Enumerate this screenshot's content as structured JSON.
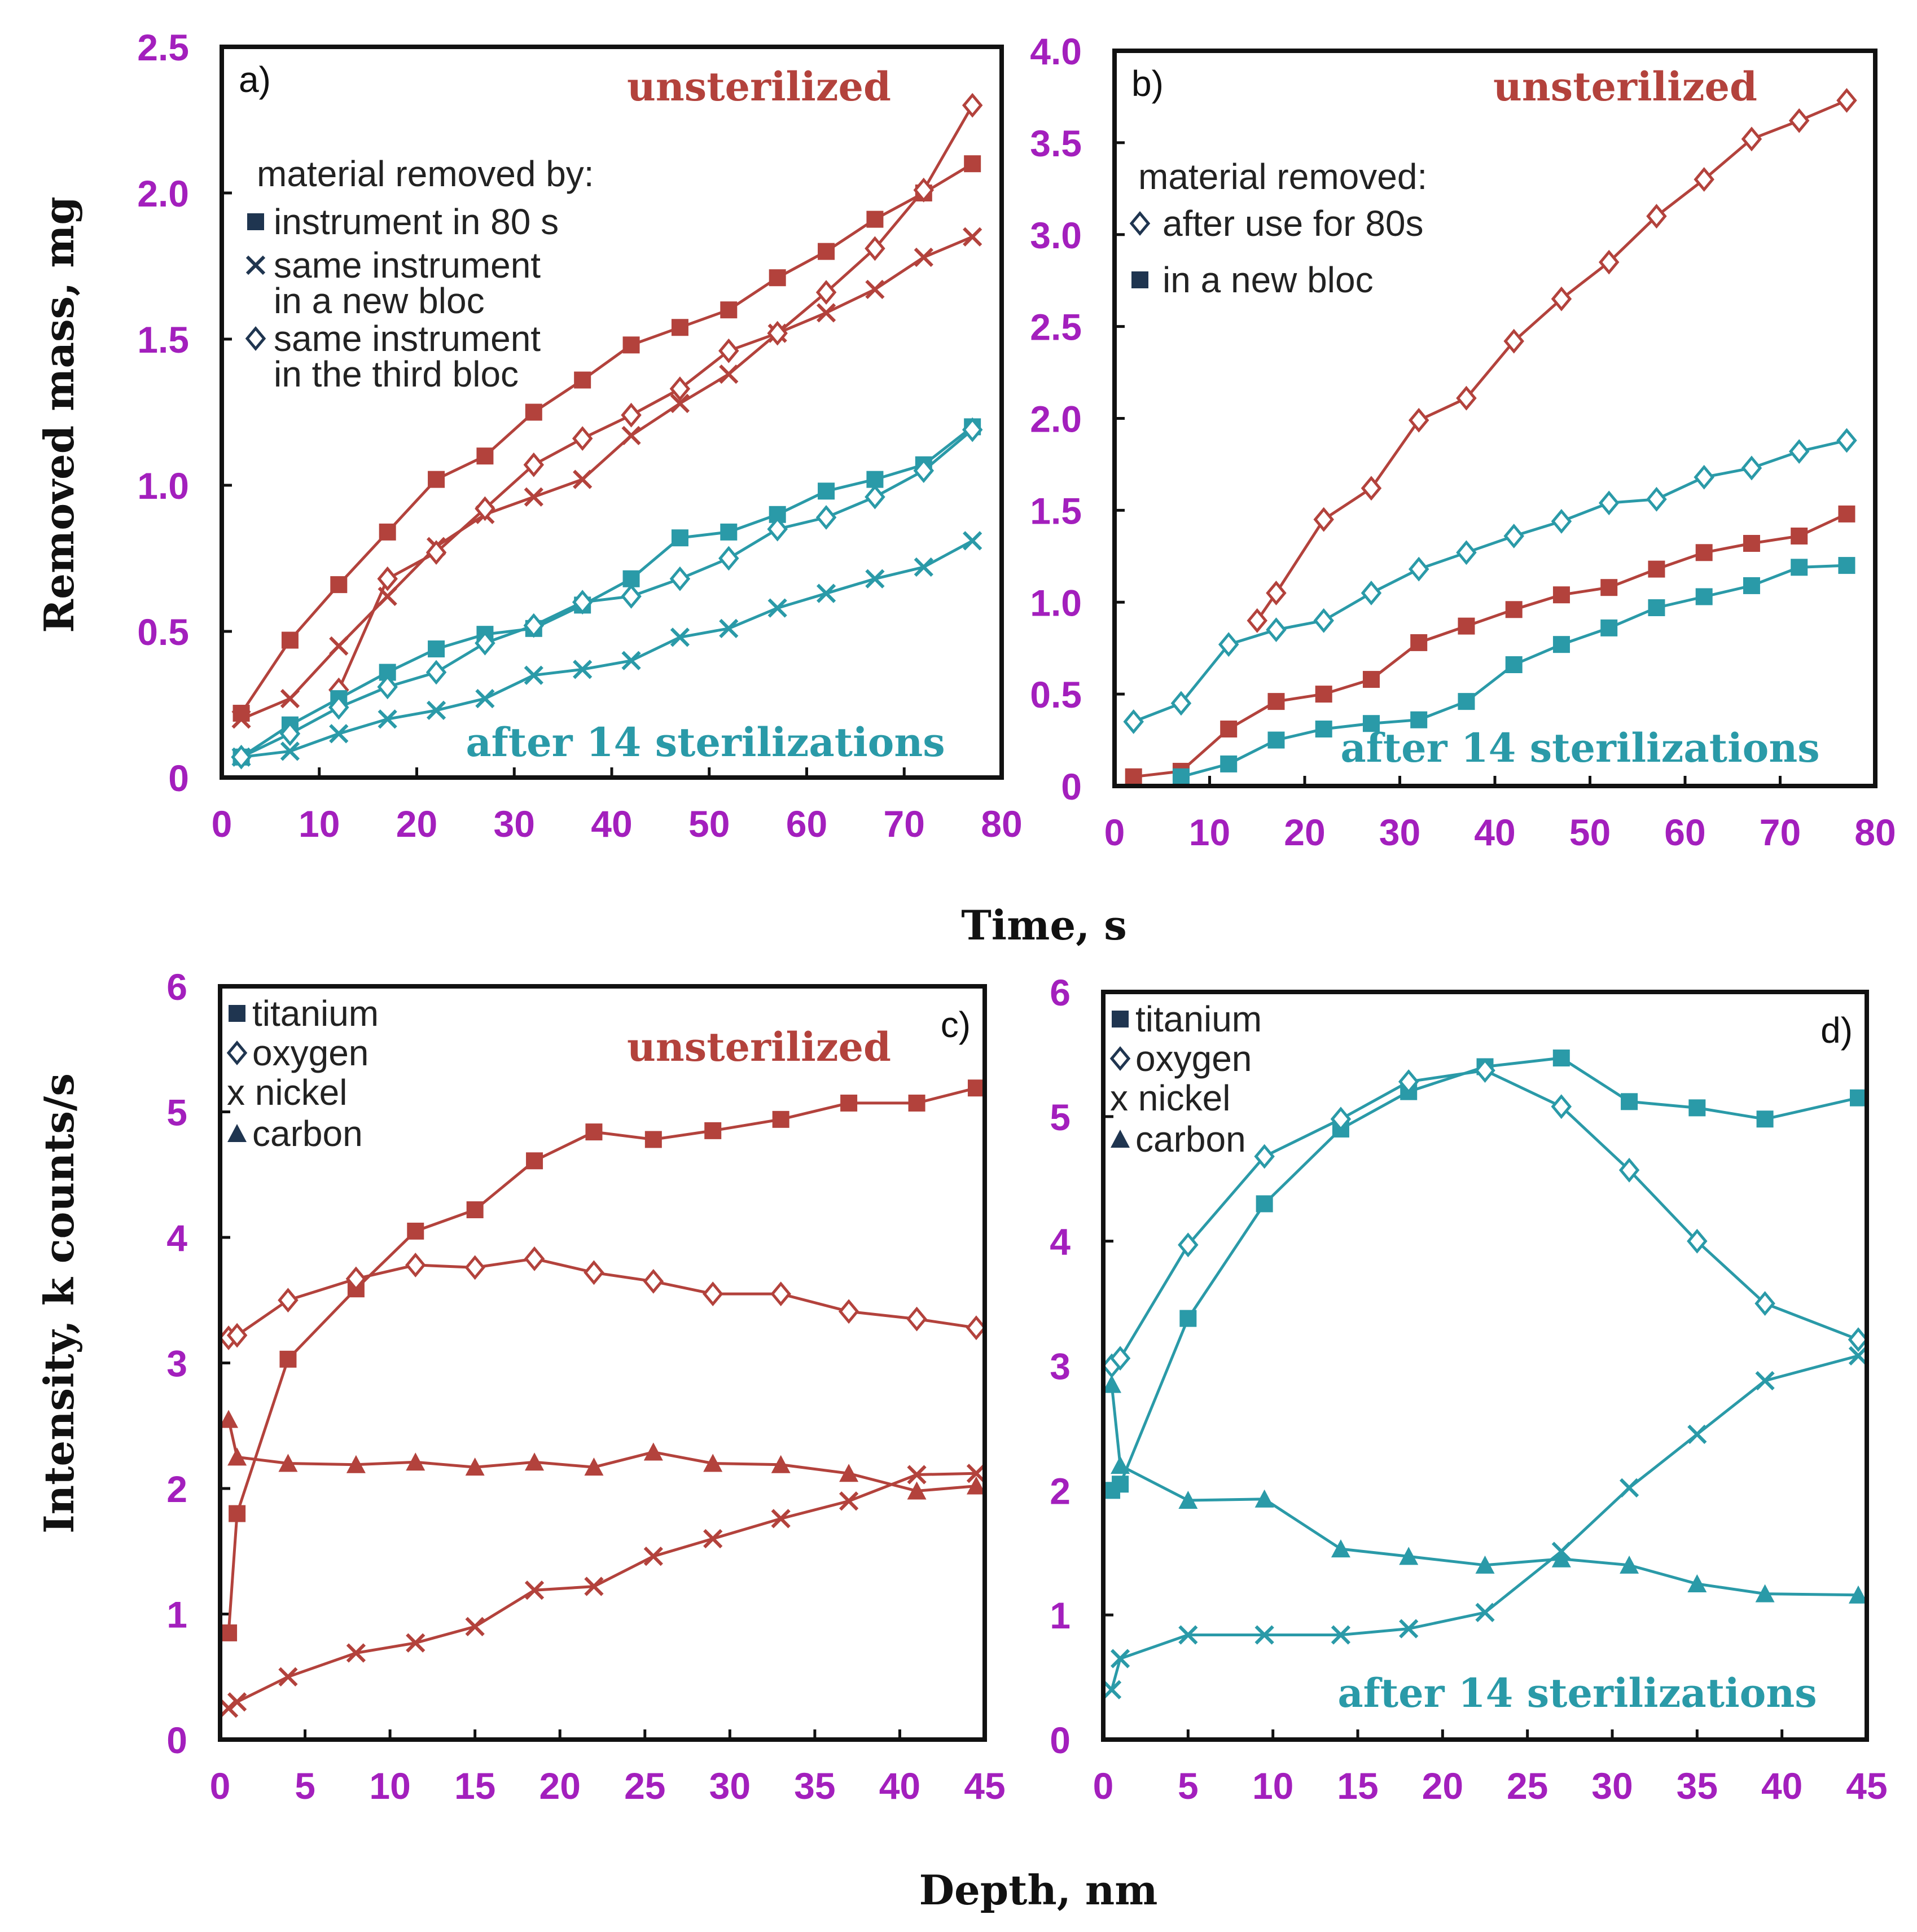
{
  "colors": {
    "red": "#b3423c",
    "teal": "#2a9aa8",
    "tick": "#a31fbd",
    "text": "#111111"
  },
  "common_labels": {
    "time_axis": "Time, s",
    "depth_axis": "Depth, nm"
  },
  "chart_data": [
    {
      "id": "a",
      "type": "line",
      "panel_label": "a)",
      "top_note": "unsterilized",
      "bottom_note": "after 14 sterilizations",
      "ylabel": "Removed mass, mg",
      "xlim": [
        0,
        80
      ],
      "ylim": [
        0,
        2.5
      ],
      "xticks": [
        "0",
        "10",
        "20",
        "30",
        "40",
        "50",
        "60",
        "70",
        "80"
      ],
      "yticks": [
        "0",
        "0.5",
        "1.0",
        "1.5",
        "2.0",
        "2.5"
      ],
      "legend": [
        "material removed by:",
        "instrument in 80 s",
        "same instrument",
        "in a new bloc",
        "same instrument",
        "in the third bloc"
      ],
      "series": [
        {
          "name": "unsterilized - instrument in 80 s",
          "group": "red",
          "marker": "square",
          "x": [
            2,
            7,
            12,
            17,
            22,
            27,
            32,
            37,
            42,
            47,
            52,
            57,
            62,
            67,
            72,
            77
          ],
          "y": [
            0.22,
            0.47,
            0.66,
            0.84,
            1.02,
            1.1,
            1.25,
            1.36,
            1.48,
            1.54,
            1.6,
            1.71,
            1.8,
            1.91,
            2.0,
            2.1
          ]
        },
        {
          "name": "unsterilized - same instrument in a new bloc",
          "group": "red",
          "marker": "x",
          "x": [
            2,
            7,
            12,
            17,
            22,
            27,
            32,
            37,
            42,
            47,
            52,
            57,
            62,
            67,
            72,
            77
          ],
          "y": [
            0.2,
            0.27,
            0.45,
            0.62,
            0.79,
            0.9,
            0.96,
            1.02,
            1.17,
            1.28,
            1.38,
            1.52,
            1.59,
            1.67,
            1.78,
            1.85
          ]
        },
        {
          "name": "unsterilized - same instrument in the third bloc",
          "group": "red",
          "marker": "diamond",
          "x": [
            12,
            17,
            22,
            27,
            32,
            37,
            42,
            47,
            52,
            57,
            62,
            67,
            72,
            77
          ],
          "y": [
            0.3,
            0.68,
            0.77,
            0.92,
            1.07,
            1.16,
            1.24,
            1.33,
            1.46,
            1.52,
            1.66,
            1.81,
            2.01,
            2.3
          ]
        },
        {
          "name": "after 14 sterilizations - instrument in 80 s",
          "group": "teal",
          "marker": "square",
          "x": [
            2,
            7,
            12,
            17,
            22,
            27,
            32,
            37,
            42,
            47,
            52,
            57,
            62,
            67,
            72,
            77
          ],
          "y": [
            0.07,
            0.18,
            0.27,
            0.36,
            0.44,
            0.49,
            0.51,
            0.59,
            0.68,
            0.82,
            0.84,
            0.9,
            0.98,
            1.02,
            1.07,
            1.2
          ]
        },
        {
          "name": "after 14 sterilizations - same instrument in a new bloc",
          "group": "teal",
          "marker": "x",
          "x": [
            2,
            7,
            12,
            17,
            22,
            27,
            32,
            37,
            42,
            47,
            52,
            57,
            62,
            67,
            72,
            77
          ],
          "y": [
            0.07,
            0.09,
            0.15,
            0.2,
            0.23,
            0.27,
            0.35,
            0.37,
            0.4,
            0.48,
            0.51,
            0.58,
            0.63,
            0.68,
            0.72,
            0.81
          ]
        },
        {
          "name": "after 14 sterilizations - same instrument in the third bloc",
          "group": "teal",
          "marker": "diamond",
          "x": [
            2,
            7,
            12,
            17,
            22,
            27,
            32,
            37,
            42,
            47,
            52,
            57,
            62,
            67,
            72,
            77
          ],
          "y": [
            0.07,
            0.15,
            0.24,
            0.31,
            0.36,
            0.46,
            0.52,
            0.6,
            0.62,
            0.68,
            0.75,
            0.85,
            0.89,
            0.96,
            1.05,
            1.19
          ]
        }
      ]
    },
    {
      "id": "b",
      "type": "line",
      "panel_label": "b)",
      "top_note": "unsterilized",
      "bottom_note": "after 14 sterilizations",
      "xlim": [
        0,
        80
      ],
      "ylim": [
        0,
        4.0
      ],
      "xticks": [
        "0",
        "10",
        "20",
        "30",
        "40",
        "50",
        "60",
        "70",
        "80"
      ],
      "yticks": [
        "0",
        "0.5",
        "1.0",
        "1.5",
        "2.0",
        "2.5",
        "3.0",
        "3.5",
        "4.0"
      ],
      "legend": [
        "material removed:",
        "after use for 80s",
        "in a new bloc"
      ],
      "series": [
        {
          "name": "unsterilized - after use for 80s",
          "group": "red",
          "marker": "diamond",
          "x": [
            15,
            17,
            22,
            27,
            32,
            37,
            42,
            47,
            52,
            57,
            62,
            67,
            72,
            77
          ],
          "y": [
            0.9,
            1.05,
            1.45,
            1.62,
            1.99,
            2.11,
            2.42,
            2.65,
            2.85,
            3.1,
            3.3,
            3.52,
            3.62,
            3.73
          ]
        },
        {
          "name": "unsterilized - in a new bloc",
          "group": "red",
          "marker": "square",
          "x": [
            2,
            7,
            12,
            17,
            22,
            27,
            32,
            37,
            42,
            47,
            52,
            57,
            62,
            67,
            72,
            77
          ],
          "y": [
            0.05,
            0.08,
            0.31,
            0.46,
            0.5,
            0.58,
            0.78,
            0.87,
            0.96,
            1.04,
            1.08,
            1.18,
            1.27,
            1.32,
            1.36,
            1.48
          ]
        },
        {
          "name": "after 14 sterilizations - after use for 80s",
          "group": "teal",
          "marker": "diamond",
          "x": [
            2,
            7,
            12,
            17,
            22,
            27,
            32,
            37,
            42,
            47,
            52,
            57,
            62,
            67,
            72,
            77
          ],
          "y": [
            0.35,
            0.45,
            0.77,
            0.85,
            0.9,
            1.05,
            1.18,
            1.27,
            1.36,
            1.44,
            1.54,
            1.56,
            1.68,
            1.73,
            1.82,
            1.88
          ]
        },
        {
          "name": "after 14 sterilizations - in a new bloc",
          "group": "teal",
          "marker": "square",
          "x": [
            7,
            12,
            17,
            22,
            27,
            32,
            37,
            42,
            47,
            52,
            57,
            62,
            67,
            72,
            77
          ],
          "y": [
            0.05,
            0.12,
            0.25,
            0.31,
            0.34,
            0.36,
            0.46,
            0.66,
            0.77,
            0.86,
            0.97,
            1.03,
            1.09,
            1.19,
            1.2
          ]
        }
      ]
    },
    {
      "id": "c",
      "type": "line",
      "panel_label": "c)",
      "top_note": "unsterilized",
      "ylabel": "Intensity, k counts/s",
      "xlim": [
        0,
        45
      ],
      "ylim": [
        0,
        6
      ],
      "xticks": [
        "0",
        "5",
        "10",
        "15",
        "20",
        "25",
        "30",
        "35",
        "40",
        "45"
      ],
      "yticks": [
        "0",
        "1",
        "2",
        "3",
        "4",
        "5",
        "6"
      ],
      "legend": [
        "titanium",
        "oxygen",
        "x nickel",
        "carbon"
      ],
      "series": [
        {
          "name": "titanium",
          "group": "red",
          "marker": "square",
          "x": [
            0.5,
            1,
            4,
            8,
            11.5,
            15,
            18.5,
            22,
            25.5,
            29,
            33,
            37,
            41,
            44.5
          ],
          "y": [
            0.85,
            1.8,
            3.03,
            3.59,
            4.05,
            4.22,
            4.61,
            4.84,
            4.78,
            4.85,
            4.94,
            5.07,
            5.07,
            5.19
          ]
        },
        {
          "name": "oxygen",
          "group": "red",
          "marker": "diamond",
          "x": [
            0.5,
            1,
            4,
            8,
            11.5,
            15,
            18.5,
            22,
            25.5,
            29,
            33,
            37,
            41,
            44.5
          ],
          "y": [
            3.2,
            3.22,
            3.5,
            3.67,
            3.78,
            3.76,
            3.83,
            3.72,
            3.65,
            3.55,
            3.55,
            3.41,
            3.35,
            3.28
          ]
        },
        {
          "name": "nickel",
          "group": "red",
          "marker": "x",
          "x": [
            0.5,
            1,
            4,
            8,
            11.5,
            15,
            18.5,
            22,
            25.5,
            29,
            33,
            37,
            41,
            44.5
          ],
          "y": [
            0.25,
            0.3,
            0.5,
            0.69,
            0.77,
            0.9,
            1.19,
            1.22,
            1.46,
            1.6,
            1.76,
            1.9,
            2.11,
            2.12
          ]
        },
        {
          "name": "carbon",
          "group": "red",
          "marker": "triangle",
          "x": [
            0.5,
            1,
            4,
            8,
            11.5,
            15,
            18.5,
            22,
            25.5,
            29,
            33,
            37,
            41,
            44.5
          ],
          "y": [
            2.55,
            2.25,
            2.2,
            2.19,
            2.21,
            2.17,
            2.21,
            2.17,
            2.29,
            2.2,
            2.19,
            2.12,
            1.98,
            2.02
          ]
        }
      ]
    },
    {
      "id": "d",
      "type": "line",
      "panel_label": "d)",
      "bottom_note": "after 14 sterilizations",
      "xlim": [
        0,
        45
      ],
      "ylim": [
        0,
        6
      ],
      "xticks": [
        "0",
        "5",
        "10",
        "15",
        "20",
        "25",
        "30",
        "35",
        "40",
        "45"
      ],
      "yticks": [
        "0",
        "1",
        "2",
        "3",
        "4",
        "5",
        "6"
      ],
      "legend": [
        "titanium",
        "oxygen",
        "x nickel",
        "carbon"
      ],
      "series": [
        {
          "name": "titanium",
          "group": "teal",
          "marker": "square",
          "x": [
            0.5,
            1,
            5,
            9.5,
            14,
            18,
            22.5,
            27,
            31,
            35,
            39,
            44.5
          ],
          "y": [
            2.0,
            2.05,
            3.38,
            4.3,
            4.9,
            5.2,
            5.4,
            5.47,
            5.12,
            5.07,
            4.98,
            5.15
          ]
        },
        {
          "name": "oxygen",
          "group": "teal",
          "marker": "diamond",
          "x": [
            0.5,
            1,
            5,
            9.5,
            14,
            18,
            22.5,
            27,
            31,
            35,
            39,
            44.5
          ],
          "y": [
            3.0,
            3.06,
            3.97,
            4.68,
            4.98,
            5.28,
            5.37,
            5.08,
            4.57,
            4.0,
            3.5,
            3.21
          ]
        },
        {
          "name": "nickel",
          "group": "teal",
          "marker": "x",
          "x": [
            0.5,
            1,
            5,
            9.5,
            14,
            18,
            22.5,
            27,
            31,
            35,
            39,
            44.5
          ],
          "y": [
            0.4,
            0.65,
            0.84,
            0.84,
            0.84,
            0.89,
            1.02,
            1.51,
            2.02,
            2.45,
            2.88,
            3.08
          ]
        },
        {
          "name": "carbon",
          "group": "teal",
          "marker": "triangle",
          "x": [
            0.5,
            1,
            5,
            9.5,
            14,
            18,
            22.5,
            27,
            31,
            35,
            39,
            44.5
          ],
          "y": [
            2.85,
            2.2,
            1.92,
            1.93,
            1.53,
            1.47,
            1.4,
            1.45,
            1.4,
            1.25,
            1.17,
            1.16
          ]
        }
      ]
    }
  ]
}
